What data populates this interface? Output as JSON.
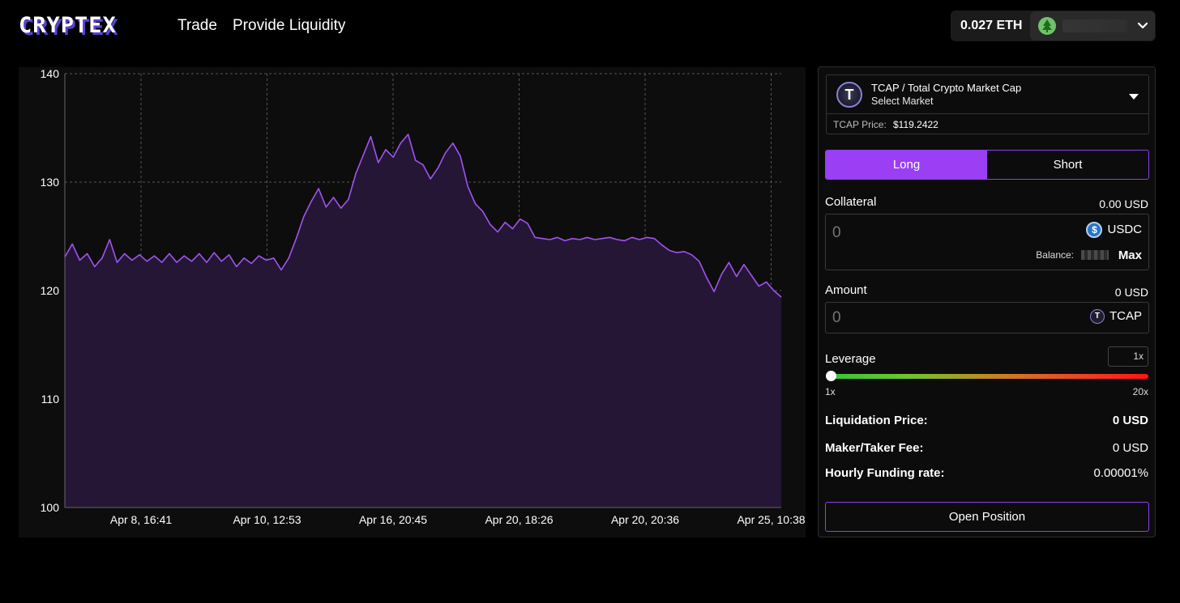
{
  "header": {
    "logo": "CRYPTEX",
    "nav": [
      {
        "label": "Trade"
      },
      {
        "label": "Provide Liquidity"
      }
    ],
    "wallet_balance": "0.027 ETH"
  },
  "chart_data": {
    "type": "area",
    "x_ticks": [
      "Apr 8, 16:41",
      "Apr 10, 12:53",
      "Apr 16, 20:45",
      "Apr 20, 18:26",
      "Apr 20, 20:36",
      "Apr 25, 10:38"
    ],
    "y_ticks": [
      100,
      110,
      120,
      130,
      140
    ],
    "ylim": [
      100,
      140
    ],
    "grid": true,
    "line_color": "#a054f0",
    "fill_color": "#261636",
    "series": [
      {
        "values": [
          123.1,
          124.3,
          122.8,
          123.4,
          122.2,
          123.0,
          124.7,
          122.6,
          123.4,
          122.8,
          123.3,
          122.7,
          123.2,
          122.6,
          123.4,
          122.6,
          123.2,
          122.7,
          123.4,
          122.6,
          123.5,
          122.7,
          123.3,
          122.2,
          123.0,
          122.5,
          123.2,
          122.8,
          123.0,
          121.9,
          123.0,
          124.8,
          126.8,
          128.2,
          129.4,
          127.7,
          128.6,
          127.6,
          128.4,
          130.8,
          132.5,
          134.2,
          131.8,
          133.0,
          132.3,
          133.6,
          134.4,
          132.0,
          131.6,
          130.3,
          131.3,
          132.7,
          133.6,
          132.4,
          129.6,
          128.0,
          127.3,
          126.1,
          125.4,
          126.3,
          125.7,
          126.6,
          126.2,
          124.9,
          124.8,
          124.7,
          124.9,
          124.6,
          124.8,
          124.7,
          124.9,
          124.7,
          124.8,
          124.9,
          124.7,
          124.6,
          124.9,
          124.7,
          124.9,
          124.8,
          124.2,
          123.7,
          123.5,
          123.6,
          123.3,
          122.7,
          121.2,
          119.9,
          121.5,
          122.6,
          121.3,
          122.4,
          121.4,
          120.4,
          120.8,
          120.0,
          119.4
        ]
      }
    ]
  },
  "market": {
    "name": "TCAP / Total Crypto Market Cap",
    "sub": "Select Market",
    "icon_letter": "T",
    "price_label": "TCAP Price:",
    "price": "$119.2422"
  },
  "tabs": {
    "long": "Long",
    "short": "Short",
    "active": "long"
  },
  "collateral": {
    "label": "Collateral",
    "value": "0.00 USD",
    "placeholder": "0",
    "token": "USDC",
    "token_icon": "usdc-icon",
    "balance_label": "Balance:",
    "max": "Max"
  },
  "amount": {
    "label": "Amount",
    "value": "0 USD",
    "placeholder": "0",
    "token": "TCAP",
    "token_icon": "tcap-icon"
  },
  "leverage": {
    "label": "Leverage",
    "value": "1x",
    "min": "1x",
    "max": "20x",
    "slider_fraction": 0
  },
  "stats": [
    {
      "label": "Liquidation Price:",
      "value": "0 USD"
    },
    {
      "label": "Maker/Taker Fee:",
      "value": "0 USD"
    },
    {
      "label": "Hourly Funding rate:",
      "value": "0.00001%"
    }
  ],
  "open_position": "Open Position",
  "colors": {
    "accent": "#9a3ff4",
    "background": "#000000",
    "panel": "#0d0d0d"
  }
}
